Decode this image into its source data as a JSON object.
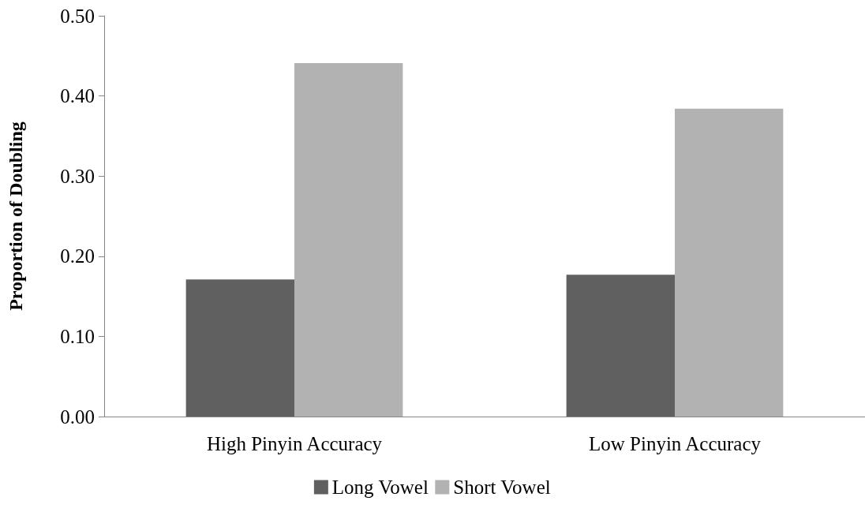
{
  "chart_data": {
    "type": "bar",
    "ylabel": "Proportion of Doubling",
    "categories": [
      "High Pinyin Accuracy",
      "Low Pinyin Accuracy"
    ],
    "series": [
      {
        "name": "Long Vowel",
        "color": "#606060",
        "values": [
          0.171,
          0.177
        ]
      },
      {
        "name": "Short Vowel",
        "color": "#b2b2b2",
        "values": [
          0.441,
          0.384
        ]
      }
    ],
    "ylim": [
      0,
      0.5
    ],
    "yticks": [
      {
        "value": 0,
        "label": "0.00"
      },
      {
        "value": 0.1,
        "label": "0.10"
      },
      {
        "value": 0.2,
        "label": "0.20"
      },
      {
        "value": 0.3,
        "label": "0.30"
      },
      {
        "value": 0.4,
        "label": "0.40"
      },
      {
        "value": 0.5,
        "label": "0.50"
      }
    ],
    "grid": false,
    "legend": "bottom"
  }
}
